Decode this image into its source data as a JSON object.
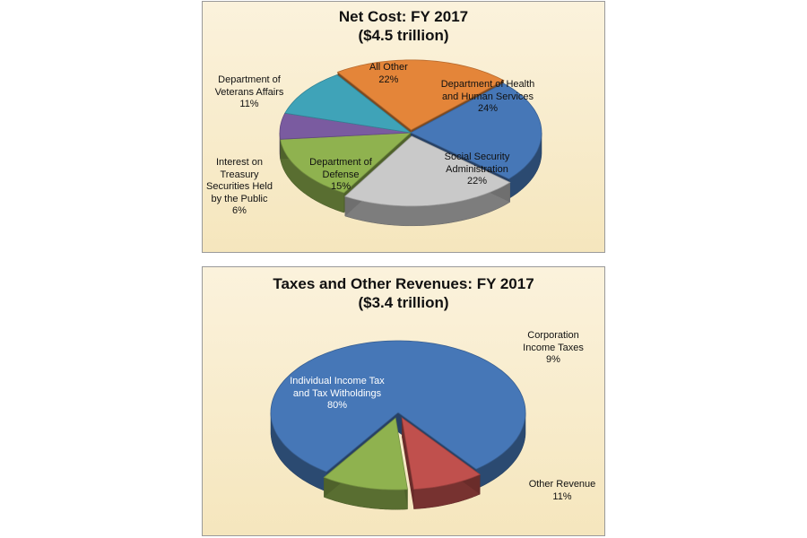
{
  "chart_data": [
    {
      "type": "pie",
      "title": "Net Cost: FY 2017",
      "subtitle": "($4.5 trillion)",
      "slices": [
        {
          "label": "All Other",
          "percent_label": "22%",
          "value": 22,
          "color": "#e48539"
        },
        {
          "label": "Department of Health and Human Services",
          "percent_label": "24%",
          "value": 24,
          "color": "#4677b7"
        },
        {
          "label": "Social Security Administration",
          "percent_label": "22%",
          "value": 22,
          "color": "#c9c9c9"
        },
        {
          "label": "Department of Defense",
          "percent_label": "15%",
          "value": 15,
          "color": "#8fb24f"
        },
        {
          "label": "Interest on Treasury Securities Held by the Public",
          "percent_label": "6%",
          "value": 6,
          "color": "#7a5ba0"
        },
        {
          "label": "Department of Veterans Affairs",
          "percent_label": "11%",
          "value": 11,
          "color": "#3fa3b8"
        }
      ]
    },
    {
      "type": "pie",
      "title": "Taxes and Other Revenues: FY 2017",
      "subtitle": "($3.4 trillion)",
      "slices": [
        {
          "label": "Individual Income Tax and Tax Witholdings",
          "percent_label": "80%",
          "value": 80,
          "color": "#4677b7"
        },
        {
          "label": "Corporation Income Taxes",
          "percent_label": "9%",
          "value": 9,
          "color": "#c0504d"
        },
        {
          "label": "Other Revenue",
          "percent_label": "11%",
          "value": 11,
          "color": "#8fb24f"
        }
      ]
    }
  ]
}
